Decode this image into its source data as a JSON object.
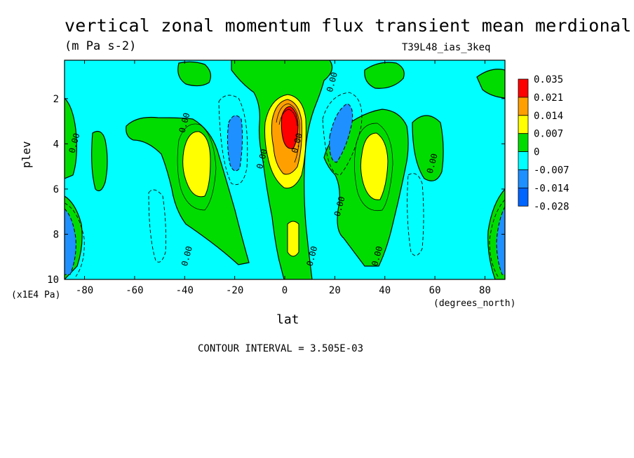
{
  "title": "vertical zonal momentum flux transient mean merdional",
  "units": "(m Pa s-2)",
  "run_id": "T39L48_ias_3keq",
  "x_label": "lat",
  "y_label": "plev",
  "y_unit_note": "(x1E4 Pa)",
  "x_unit_note": "(degrees_north)",
  "contour_interval": "CONTOUR INTERVAL = 3.505E-03",
  "colors": {
    "red": "#ff0000",
    "orange": "#ffa000",
    "yellow": "#ffff00",
    "green": "#00dc00",
    "cyan": "#00ffff",
    "blue1": "#1e90ff",
    "blue2": "#0064ff"
  },
  "chart_data": {
    "type": "heatmap",
    "title": "vertical zonal momentum flux transient mean merdional",
    "xlabel": "lat",
    "ylabel": "plev",
    "xlim": [
      -88,
      88
    ],
    "ylim": [
      0.3,
      10
    ],
    "y_inverted": true,
    "x_ticks": [
      -80,
      -60,
      -40,
      -20,
      0,
      20,
      40,
      60,
      80
    ],
    "y_ticks": [
      2,
      4,
      6,
      8,
      10
    ],
    "colorbar": {
      "levels": [
        "0.035",
        "0.021",
        "0.014",
        "0.007",
        "0",
        "-0.007",
        "-0.014",
        "-0.028"
      ],
      "colors": [
        "#ff0000",
        "#ffa000",
        "#ffff00",
        "#00dc00",
        "#00ffff",
        "#1e90ff",
        "#0064ff"
      ]
    },
    "contour_labels": [
      {
        "text": "0.00",
        "lat": -39,
        "plev": 3.1
      },
      {
        "text": "0.00",
        "lat": -83,
        "plev": 4.0
      },
      {
        "text": "0.00",
        "lat": -8,
        "plev": 4.7
      },
      {
        "text": "0.00",
        "lat": 20,
        "plev": 1.3
      },
      {
        "text": "0.00",
        "lat": 6,
        "plev": 4.0
      },
      {
        "text": "0.00",
        "lat": 23,
        "plev": 6.8
      },
      {
        "text": "0.00",
        "lat": 60,
        "plev": 4.9
      },
      {
        "text": "0.00",
        "lat": -38,
        "plev": 9.0
      },
      {
        "text": "0.00",
        "lat": 12,
        "plev": 9.0
      },
      {
        "text": "0.00",
        "lat": 38,
        "plev": 9.0
      }
    ],
    "notes": "Field maxima: red core near lat 3, plev 3; yellow cells near lat -35 and lat 36, plev 4-5; blue minima near lat -21, lat 22, and at the poles near plev 7-9."
  }
}
